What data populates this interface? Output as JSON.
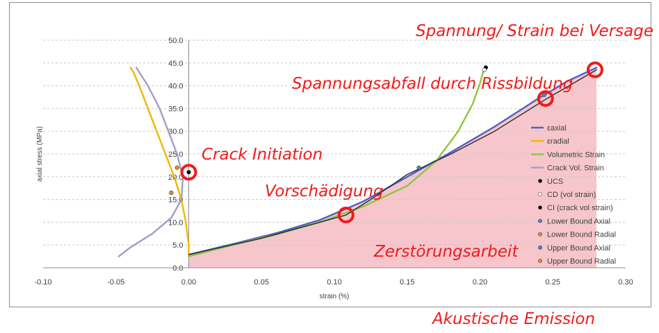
{
  "chart_data": {
    "type": "line",
    "xlabel": "strain (%)",
    "ylabel": "axial stress (MPa)",
    "xlim": [
      -0.1,
      0.3
    ],
    "ylim": [
      0.0,
      50.0
    ],
    "x_ticks": [
      "-0.10",
      "-0.05",
      "0.00",
      "0.05",
      "0.10",
      "0.15",
      "0.20",
      "0.25",
      "0.30"
    ],
    "y_ticks": [
      "0.0",
      "5.0",
      "10.0",
      "15.0",
      "20.0",
      "25.0",
      "30.0",
      "35.0",
      "40.0",
      "45.0",
      "50.0"
    ],
    "grid": "horizontal dashed",
    "legend_position": "right",
    "series": [
      {
        "name": "εaxial",
        "color": "#4f5fc8",
        "points": [
          [
            0.0,
            2.9
          ],
          [
            0.03,
            5.2
          ],
          [
            0.06,
            7.6
          ],
          [
            0.09,
            10.5
          ],
          [
            0.12,
            14.6
          ],
          [
            0.15,
            20.0
          ],
          [
            0.18,
            25.4
          ],
          [
            0.21,
            31.0
          ],
          [
            0.24,
            37.2
          ],
          [
            0.26,
            41.0
          ],
          [
            0.28,
            44.0
          ]
        ]
      },
      {
        "name": "εradial",
        "color": "#f2b600",
        "points": [
          [
            0.0,
            2.9
          ],
          [
            0.0,
            5.0
          ],
          [
            -0.002,
            10.0
          ],
          [
            -0.005,
            15.0
          ],
          [
            -0.01,
            20.0
          ],
          [
            -0.016,
            25.0
          ],
          [
            -0.022,
            30.0
          ],
          [
            -0.028,
            35.0
          ],
          [
            -0.034,
            40.0
          ],
          [
            -0.038,
            43.0
          ],
          [
            -0.04,
            44.0
          ]
        ]
      },
      {
        "name": "Volumetric Strain",
        "color": "#8dc63f",
        "points": [
          [
            0.0,
            2.5
          ],
          [
            0.03,
            5.0
          ],
          [
            0.06,
            7.3
          ],
          [
            0.09,
            10.0
          ],
          [
            0.12,
            13.5
          ],
          [
            0.15,
            18.0
          ],
          [
            0.17,
            23.5
          ],
          [
            0.185,
            30.0
          ],
          [
            0.195,
            36.0
          ],
          [
            0.2,
            40.5
          ],
          [
            0.203,
            44.0
          ]
        ]
      },
      {
        "name": "Crack Vol. Strain",
        "color": "#a59bc6",
        "points": [
          [
            -0.048,
            2.5
          ],
          [
            -0.04,
            4.5
          ],
          [
            -0.025,
            7.5
          ],
          [
            -0.012,
            11.0
          ],
          [
            -0.005,
            15.0
          ],
          [
            -0.004,
            20.0
          ],
          [
            -0.008,
            25.0
          ],
          [
            -0.014,
            30.0
          ],
          [
            -0.02,
            35.0
          ],
          [
            -0.028,
            40.0
          ],
          [
            -0.036,
            44.0
          ]
        ]
      },
      {
        "name": "Akustische Emission",
        "color": "#2a2a2a",
        "points": [
          [
            0.0,
            2.9
          ],
          [
            0.05,
            6.5
          ],
          [
            0.108,
            11.6
          ],
          [
            0.125,
            15.0
          ],
          [
            0.15,
            20.5
          ],
          [
            0.18,
            25.0
          ],
          [
            0.21,
            30.0
          ],
          [
            0.245,
            37.0
          ],
          [
            0.28,
            43.5
          ]
        ]
      }
    ],
    "markers": [
      {
        "name": "UCS",
        "color": "#000000",
        "x": 0.204,
        "y": 44.0
      },
      {
        "name": "CD (vol strain)",
        "color": "#ffffff",
        "x": 0.203,
        "y": 43.5
      },
      {
        "name": "CI (crack vol strain)",
        "color": "#000000",
        "x": 0.0,
        "y": 21.0
      },
      {
        "name": "Lower Bound Axial",
        "color": "#4a86c5",
        "x": 0.158,
        "y": 22.0
      },
      {
        "name": "Lower Bound Radial",
        "color": "#e58a2a",
        "x": -0.012,
        "y": 16.5
      },
      {
        "name": "Upper Bound Axial",
        "color": "#4a86c5",
        "x": 0.244,
        "y": 38.0
      },
      {
        "name": "Upper Bound Radial",
        "color": "#e58a2a",
        "x": -0.008,
        "y": 22.0
      }
    ],
    "legend": [
      "εaxial",
      "εradial",
      "Volumetric Strain",
      "Crack Vol. Strain",
      "UCS",
      "CD (vol strain)",
      "CI (crack vol strain)",
      "Lower Bound Axial",
      "Lower Bound Radial",
      "Upper Bound Axial",
      "Upper Bound Radial"
    ],
    "shaded_area": {
      "color": "#f6c6cc",
      "label": "Zerstörungsarbeit"
    },
    "annotations": [
      {
        "text": "Spannung/ Strain bei Versage",
        "x": 0.279,
        "y": 43.5
      },
      {
        "text": "Spannungsabfall durch Rissbildung",
        "x": 0.245,
        "y": 37.2
      },
      {
        "text": "Crack Initiation",
        "x": 0.0,
        "y": 21.0
      },
      {
        "text": "Vorschädigung",
        "x": 0.108,
        "y": 11.6
      },
      {
        "text": "Zerstörungsarbeit"
      },
      {
        "text": "Akustische Emission"
      }
    ]
  }
}
